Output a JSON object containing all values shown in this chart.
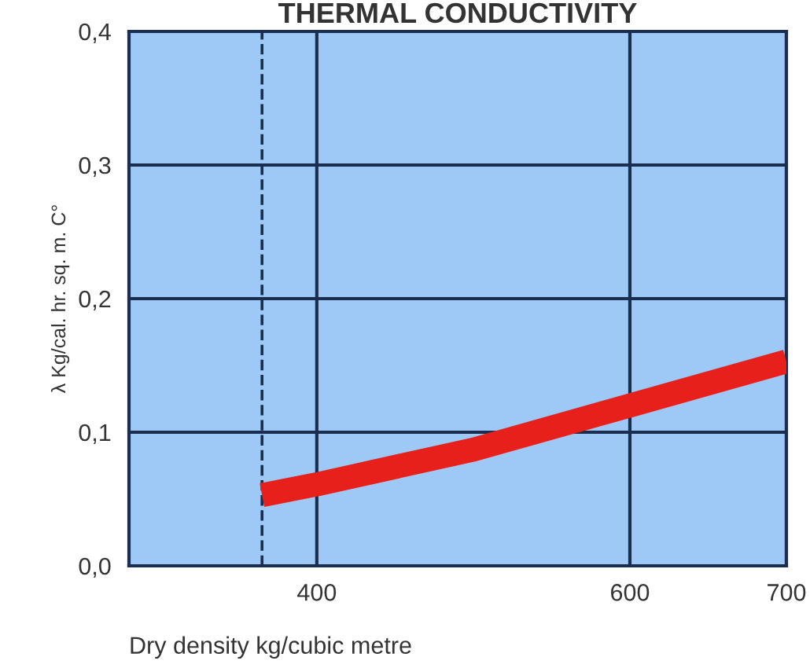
{
  "chart_data": {
    "type": "line",
    "title": "THERMAL CONDUCTIVITY",
    "xlabel": "Dry density kg/cubic metre",
    "ylabel": "λ Kg/cal. hr. sq. m. C°",
    "x": [
      365,
      400,
      500,
      600,
      700
    ],
    "series": [
      {
        "color": "#e8201c",
        "values": [
          0.053,
          0.061,
          0.087,
          0.12,
          0.153
        ]
      }
    ],
    "xlim": [
      280,
      700
    ],
    "xticks": [
      400,
      600,
      700
    ],
    "ylim": [
      0,
      0.4
    ],
    "yticks": [
      {
        "value": 0,
        "label": "0,0"
      },
      {
        "value": 0.1,
        "label": "0,1"
      },
      {
        "value": 0.2,
        "label": "0,2"
      },
      {
        "value": 0.3,
        "label": "0,3"
      },
      {
        "value": 0.4,
        "label": "0,4"
      }
    ],
    "ref_lines": [
      {
        "axis": "x",
        "value": 365,
        "color": "#1a2f4f",
        "line_style": "dashed"
      }
    ],
    "grid": true,
    "legend": false,
    "marker": "none",
    "line_style": "solid"
  }
}
